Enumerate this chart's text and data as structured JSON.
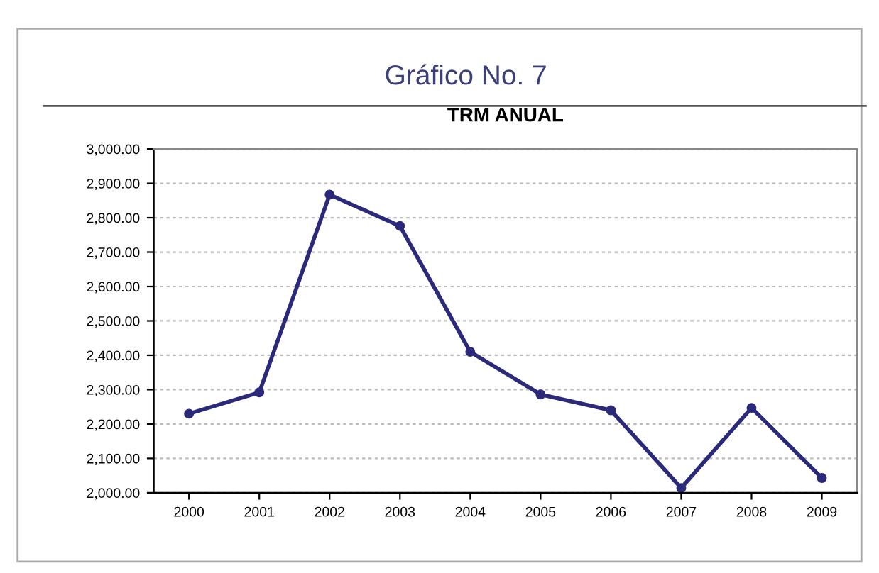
{
  "chart_data": {
    "type": "line",
    "title": "Gráfico No. 7",
    "subtitle": "TRM ANUAL",
    "categories": [
      "2000",
      "2001",
      "2002",
      "2003",
      "2004",
      "2005",
      "2006",
      "2007",
      "2008",
      "2009"
    ],
    "series": [
      {
        "color": "#2b2a7a",
        "values": [
          2230,
          2292,
          2867,
          2776,
          2410,
          2286,
          2240,
          2014,
          2247,
          2043
        ]
      }
    ],
    "ylim": [
      2000,
      3000
    ],
    "yticks": [
      {
        "value": 2000,
        "label": "2,000.00"
      },
      {
        "value": 2100,
        "label": "2,100.00"
      },
      {
        "value": 2200,
        "label": "2,200.00"
      },
      {
        "value": 2300,
        "label": "2,300.00"
      },
      {
        "value": 2400,
        "label": "2,400.00"
      },
      {
        "value": 2500,
        "label": "2,500.00"
      },
      {
        "value": 2600,
        "label": "2,600.00"
      },
      {
        "value": 2700,
        "label": "2,700.00"
      },
      {
        "value": 2800,
        "label": "2,800.00"
      },
      {
        "value": 2900,
        "label": "2,900.00"
      },
      {
        "value": 3000,
        "label": "3,000.00"
      }
    ],
    "grid": "y",
    "marker": "circle",
    "line_style": "solid",
    "legend": false
  }
}
